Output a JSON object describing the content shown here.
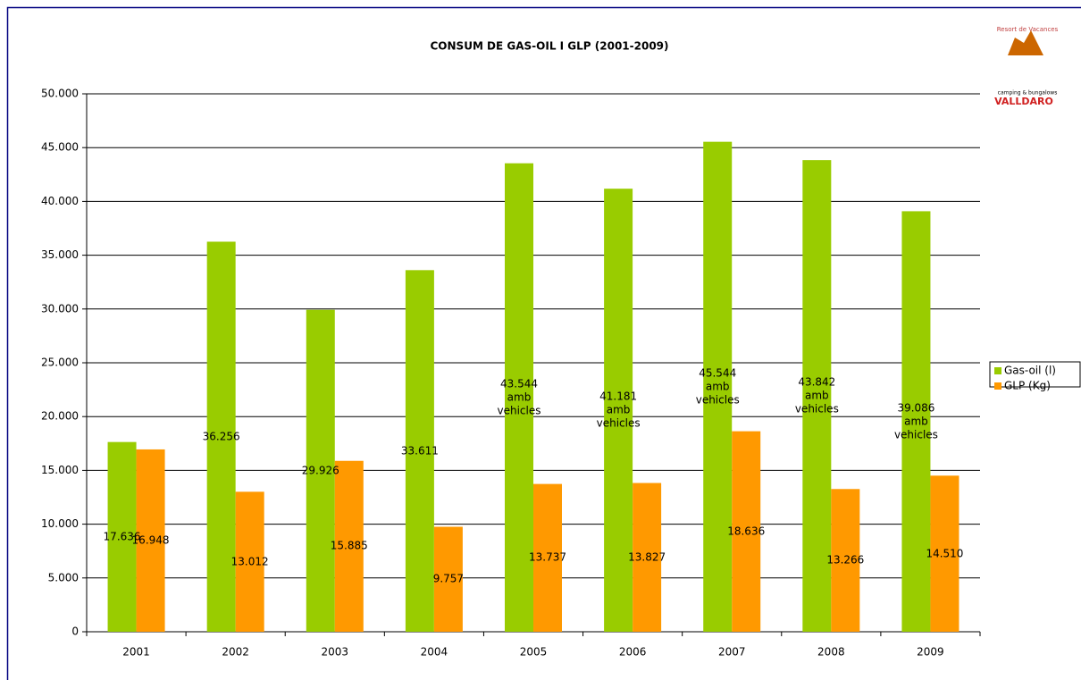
{
  "chart_data": {
    "type": "bar",
    "title": "CONSUM DE GAS-OIL I GLP  (2001-2009)",
    "categories": [
      "2001",
      "2002",
      "2003",
      "2004",
      "2005",
      "2006",
      "2007",
      "2008",
      "2009"
    ],
    "series": [
      {
        "name": "Gas-oil (l)",
        "color": "#99cc00",
        "values": [
          17636,
          36256,
          29926,
          33611,
          43544,
          41181,
          45544,
          43842,
          39086
        ],
        "value_labels": [
          "17.636",
          "36.256",
          "29.926",
          "33.611",
          "43.544 amb vehicles",
          "41.181 amb vehicles",
          "45.544 amb vehicles",
          "43.842 amb vehicles",
          "39.086 amb vehicles"
        ]
      },
      {
        "name": "GLP (Kg)",
        "color": "#ff9900",
        "values": [
          16948,
          13012,
          15885,
          9757,
          13737,
          13827,
          18636,
          13266,
          14510
        ],
        "value_labels": [
          "16.948",
          "13.012",
          "15.885",
          "9.757",
          "13.737",
          "13.827",
          "18.636",
          "13.266",
          "14.510"
        ]
      }
    ],
    "ylim": [
      0,
      50000
    ],
    "yticks": [
      0,
      {
        "value": 5000,
        "label": "5.000"
      },
      {
        "value": 10000,
        "label": "10.000"
      },
      {
        "value": 15000,
        "label": "15.000"
      },
      {
        "value": 20000,
        "label": "20.000"
      },
      {
        "value": 25000,
        "label": "25.000"
      },
      {
        "value": 30000,
        "label": "30.000"
      },
      {
        "value": 35000,
        "label": "35.000"
      },
      {
        "value": 40000,
        "label": "40.000"
      },
      {
        "value": 45000,
        "label": "45.000"
      },
      {
        "value": 50000,
        "label": "50.000"
      }
    ],
    "grid": true,
    "legend": "right",
    "logo": {
      "top": "Resort de Vacances",
      "middle": "camping & bungalows",
      "name": "VALLDARO"
    }
  }
}
